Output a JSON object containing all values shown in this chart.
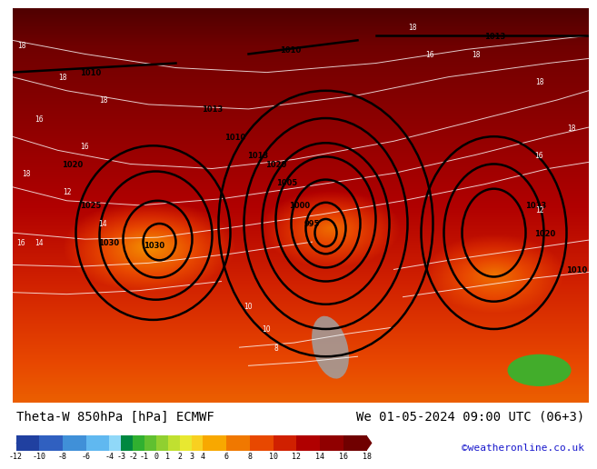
{
  "title_left": "Theta-W 850hPa [hPa] ECMWF",
  "title_right": "We 01-05-2024 09:00 UTC (06+3)",
  "watermark": "©weatheronline.co.uk",
  "colorbar_ticks": [
    -12,
    -10,
    -8,
    -6,
    -4,
    -3,
    -2,
    -1,
    0,
    1,
    2,
    3,
    4,
    6,
    8,
    10,
    12,
    14,
    16,
    18
  ],
  "colorbar_colors": [
    "#2040a0",
    "#3060c0",
    "#4090d8",
    "#60b8f0",
    "#90d8f8",
    "#008840",
    "#30b030",
    "#60c030",
    "#90d030",
    "#c0e030",
    "#e8e830",
    "#f8d020",
    "#f8a800",
    "#f07800",
    "#e84800",
    "#d02000",
    "#b00000",
    "#900000",
    "#700000"
  ],
  "title_fontsize": 10,
  "watermark_fontsize": 8,
  "fig_width": 6.34,
  "fig_height": 4.9
}
